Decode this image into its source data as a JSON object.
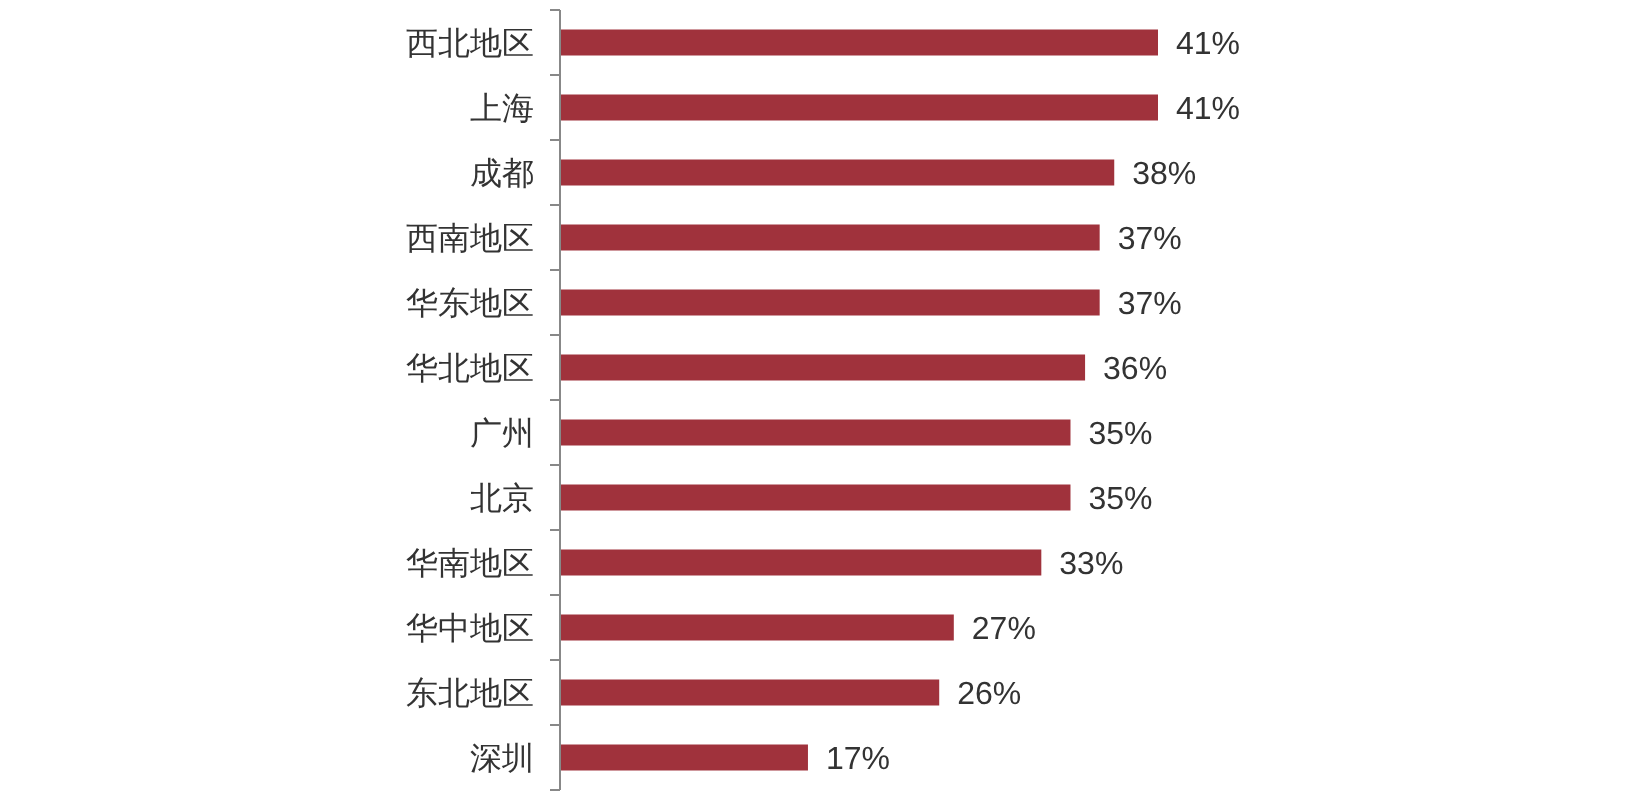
{
  "chart_data": {
    "type": "bar",
    "orientation": "horizontal",
    "categories": [
      "西北地区",
      "上海",
      "成都",
      "西南地区",
      "华东地区",
      "华北地区",
      "广州",
      "北京",
      "华南地区",
      "华中地区",
      "东北地区",
      "深圳"
    ],
    "values": [
      41,
      41,
      38,
      37,
      37,
      36,
      35,
      35,
      33,
      27,
      26,
      17
    ],
    "value_labels": [
      "41%",
      "41%",
      "38%",
      "37%",
      "37%",
      "36%",
      "35%",
      "35%",
      "33%",
      "27%",
      "26%",
      "17%"
    ],
    "color": "#a0323c"
  }
}
